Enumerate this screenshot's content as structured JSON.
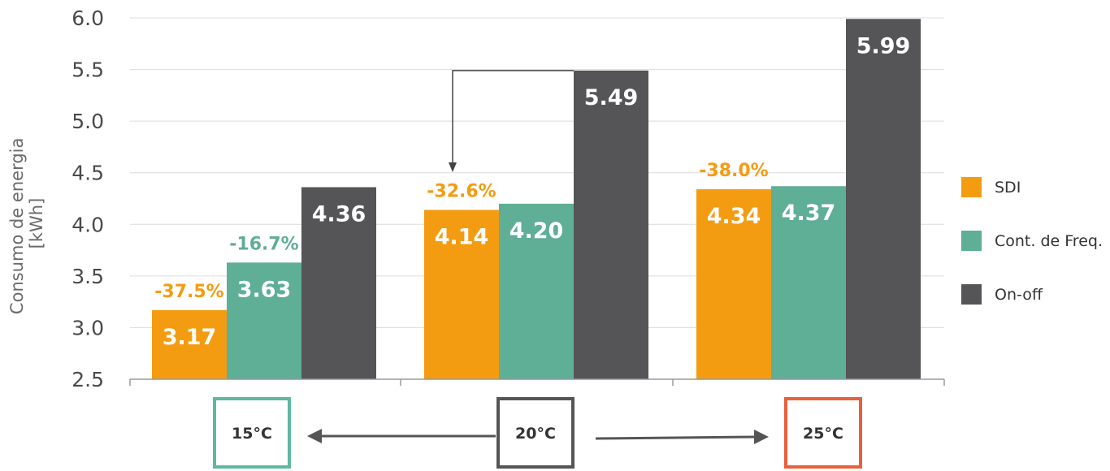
{
  "chart_data": {
    "type": "bar",
    "categories": [
      "15°C",
      "20°C",
      "25°C"
    ],
    "series": [
      {
        "name": "SDI",
        "values": [
          3.17,
          4.14,
          4.34
        ]
      },
      {
        "name": "Cont. de Freq.",
        "values": [
          3.63,
          4.2,
          4.37
        ]
      },
      {
        "name": "On-off",
        "values": [
          4.36,
          5.49,
          5.99
        ]
      }
    ],
    "value_labels": [
      [
        "3.17",
        "4.14",
        "4.34"
      ],
      [
        "3.63",
        "4.20",
        "4.37"
      ],
      [
        "4.36",
        "5.49",
        "5.99"
      ]
    ],
    "annotations": [
      {
        "text": "-37.5%",
        "category": 0,
        "series": 0,
        "color": "#f39c12"
      },
      {
        "text": "-16.7%",
        "category": 0,
        "series": 1,
        "color": "#5fae96"
      },
      {
        "text": "-32.6%",
        "category": 1,
        "series": 0,
        "color": "#f39c12"
      },
      {
        "text": "-38.0%",
        "category": 2,
        "series": 0,
        "color": "#f39c12"
      }
    ],
    "ylabel_line1": "Consumo de energia",
    "ylabel_line2": "[kWh]",
    "ylim": [
      2.5,
      6.0
    ],
    "yticks": [
      "2.5",
      "3.0",
      "3.5",
      "4.0",
      "4.5",
      "5.0",
      "5.5",
      "6.0"
    ],
    "ytick_values": [
      2.5,
      3.0,
      3.5,
      4.0,
      4.5,
      5.0,
      5.5,
      6.0
    ],
    "grid": true,
    "legend_position": "right",
    "colors": {
      "SDI": "#f39c12",
      "Cont. de Freq.": "#5fae96",
      "On-off": "#555557"
    },
    "temperature_boxes": [
      {
        "label": "15°C",
        "color": "#5fb8a0"
      },
      {
        "label": "20°C",
        "color": "#555557"
      },
      {
        "label": "25°C",
        "color": "#e8603c"
      }
    ]
  }
}
